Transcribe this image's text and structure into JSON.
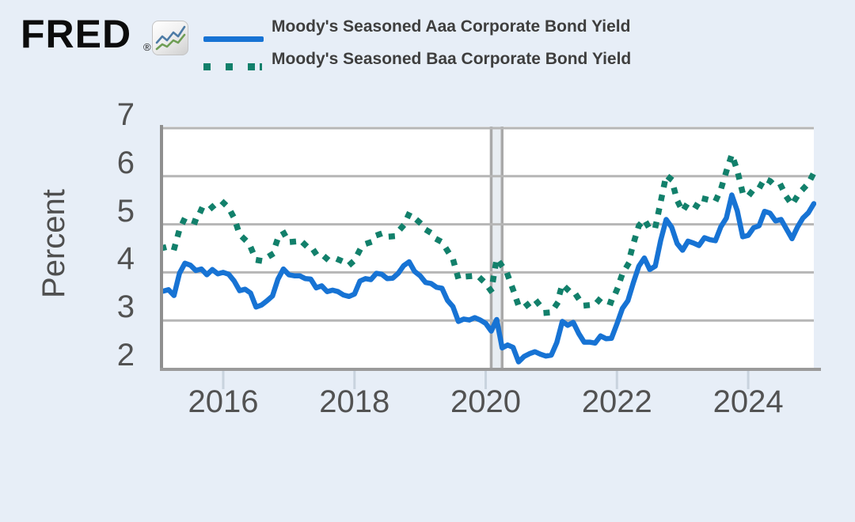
{
  "header": {
    "logo_text": "FRED",
    "registered_mark": "®",
    "logo_icon": "line-chart-icon"
  },
  "legend": {
    "items": [
      {
        "label": "Moody's Seasoned Aaa Corporate Bond Yield",
        "style": "solid-line",
        "color": "#1773d4"
      },
      {
        "label": "Moody's Seasoned Baa Corporate Bond Yield",
        "style": "dotted-line",
        "color": "#12806b"
      }
    ]
  },
  "chart_data": {
    "type": "line",
    "title": "",
    "ylabel": "Percent",
    "xlabel": "",
    "frequency": "monthly",
    "x_start": "2015-02",
    "x_end": "2025-01",
    "x_ticks": [
      "2016",
      "2018",
      "2020",
      "2022",
      "2024"
    ],
    "y_ticks": [
      2,
      3,
      4,
      5,
      6,
      7
    ],
    "ylim": [
      2,
      7
    ],
    "grid": "horizontal",
    "legend_position": "top",
    "recession_band": {
      "from": "2020-02",
      "to": "2020-04"
    },
    "series": [
      {
        "name": "Moody's Seasoned Aaa Corporate Bond Yield",
        "color": "#1773d4",
        "style": "solid",
        "values": [
          3.61,
          3.64,
          3.52,
          3.98,
          4.19,
          4.15,
          4.04,
          4.07,
          3.95,
          4.06,
          3.97,
          4.0,
          3.96,
          3.82,
          3.62,
          3.65,
          3.57,
          3.28,
          3.32,
          3.41,
          3.51,
          3.86,
          4.07,
          3.95,
          3.93,
          3.93,
          3.87,
          3.86,
          3.68,
          3.72,
          3.6,
          3.63,
          3.6,
          3.53,
          3.5,
          3.55,
          3.82,
          3.87,
          3.85,
          3.98,
          3.96,
          3.87,
          3.88,
          3.98,
          4.14,
          4.22,
          4.02,
          3.93,
          3.79,
          3.77,
          3.69,
          3.67,
          3.42,
          3.29,
          2.98,
          3.03,
          3.01,
          3.06,
          3.01,
          2.94,
          2.78,
          3.02,
          2.43,
          2.49,
          2.44,
          2.14,
          2.25,
          2.31,
          2.35,
          2.3,
          2.26,
          2.28,
          2.54,
          2.98,
          2.9,
          2.96,
          2.73,
          2.55,
          2.55,
          2.53,
          2.68,
          2.62,
          2.63,
          2.93,
          3.25,
          3.41,
          3.79,
          4.13,
          4.3,
          4.06,
          4.13,
          4.67,
          5.1,
          4.94,
          4.6,
          4.46,
          4.65,
          4.61,
          4.56,
          4.72,
          4.68,
          4.66,
          4.95,
          5.13,
          5.61,
          5.28,
          4.74,
          4.77,
          4.93,
          4.97,
          5.27,
          5.23,
          5.07,
          5.1,
          4.9,
          4.7,
          4.94,
          5.13,
          5.24,
          5.43
        ]
      },
      {
        "name": "Moody's Seasoned Baa Corporate Bond Yield",
        "color": "#12806b",
        "style": "dotted",
        "values": [
          4.51,
          4.54,
          4.48,
          4.89,
          5.13,
          5.09,
          5.05,
          5.31,
          5.26,
          5.36,
          5.46,
          5.45,
          5.34,
          5.13,
          4.79,
          4.68,
          4.53,
          4.26,
          4.24,
          4.31,
          4.38,
          4.71,
          4.83,
          4.63,
          4.64,
          4.68,
          4.57,
          4.55,
          4.38,
          4.38,
          4.28,
          4.26,
          4.27,
          4.22,
          4.15,
          4.25,
          4.47,
          4.59,
          4.63,
          4.77,
          4.81,
          4.74,
          4.75,
          4.85,
          4.98,
          5.22,
          5.13,
          5.03,
          4.89,
          4.82,
          4.69,
          4.63,
          4.45,
          4.28,
          3.87,
          3.91,
          3.92,
          3.94,
          3.88,
          3.77,
          3.61,
          4.29,
          4.13,
          3.95,
          3.64,
          3.31,
          3.27,
          3.36,
          3.44,
          3.3,
          3.16,
          3.17,
          3.34,
          3.75,
          3.64,
          3.62,
          3.45,
          3.31,
          3.32,
          3.33,
          3.46,
          3.41,
          3.37,
          3.64,
          3.97,
          4.16,
          4.6,
          4.97,
          5.1,
          4.9,
          4.93,
          5.47,
          6.02,
          5.93,
          5.5,
          5.27,
          5.45,
          5.42,
          5.35,
          5.53,
          5.5,
          5.48,
          5.73,
          6.1,
          6.45,
          6.12,
          5.65,
          5.58,
          5.73,
          5.75,
          5.95,
          5.9,
          5.79,
          5.8,
          5.57,
          5.41,
          5.59,
          5.73,
          5.85,
          6.07
        ]
      }
    ]
  }
}
